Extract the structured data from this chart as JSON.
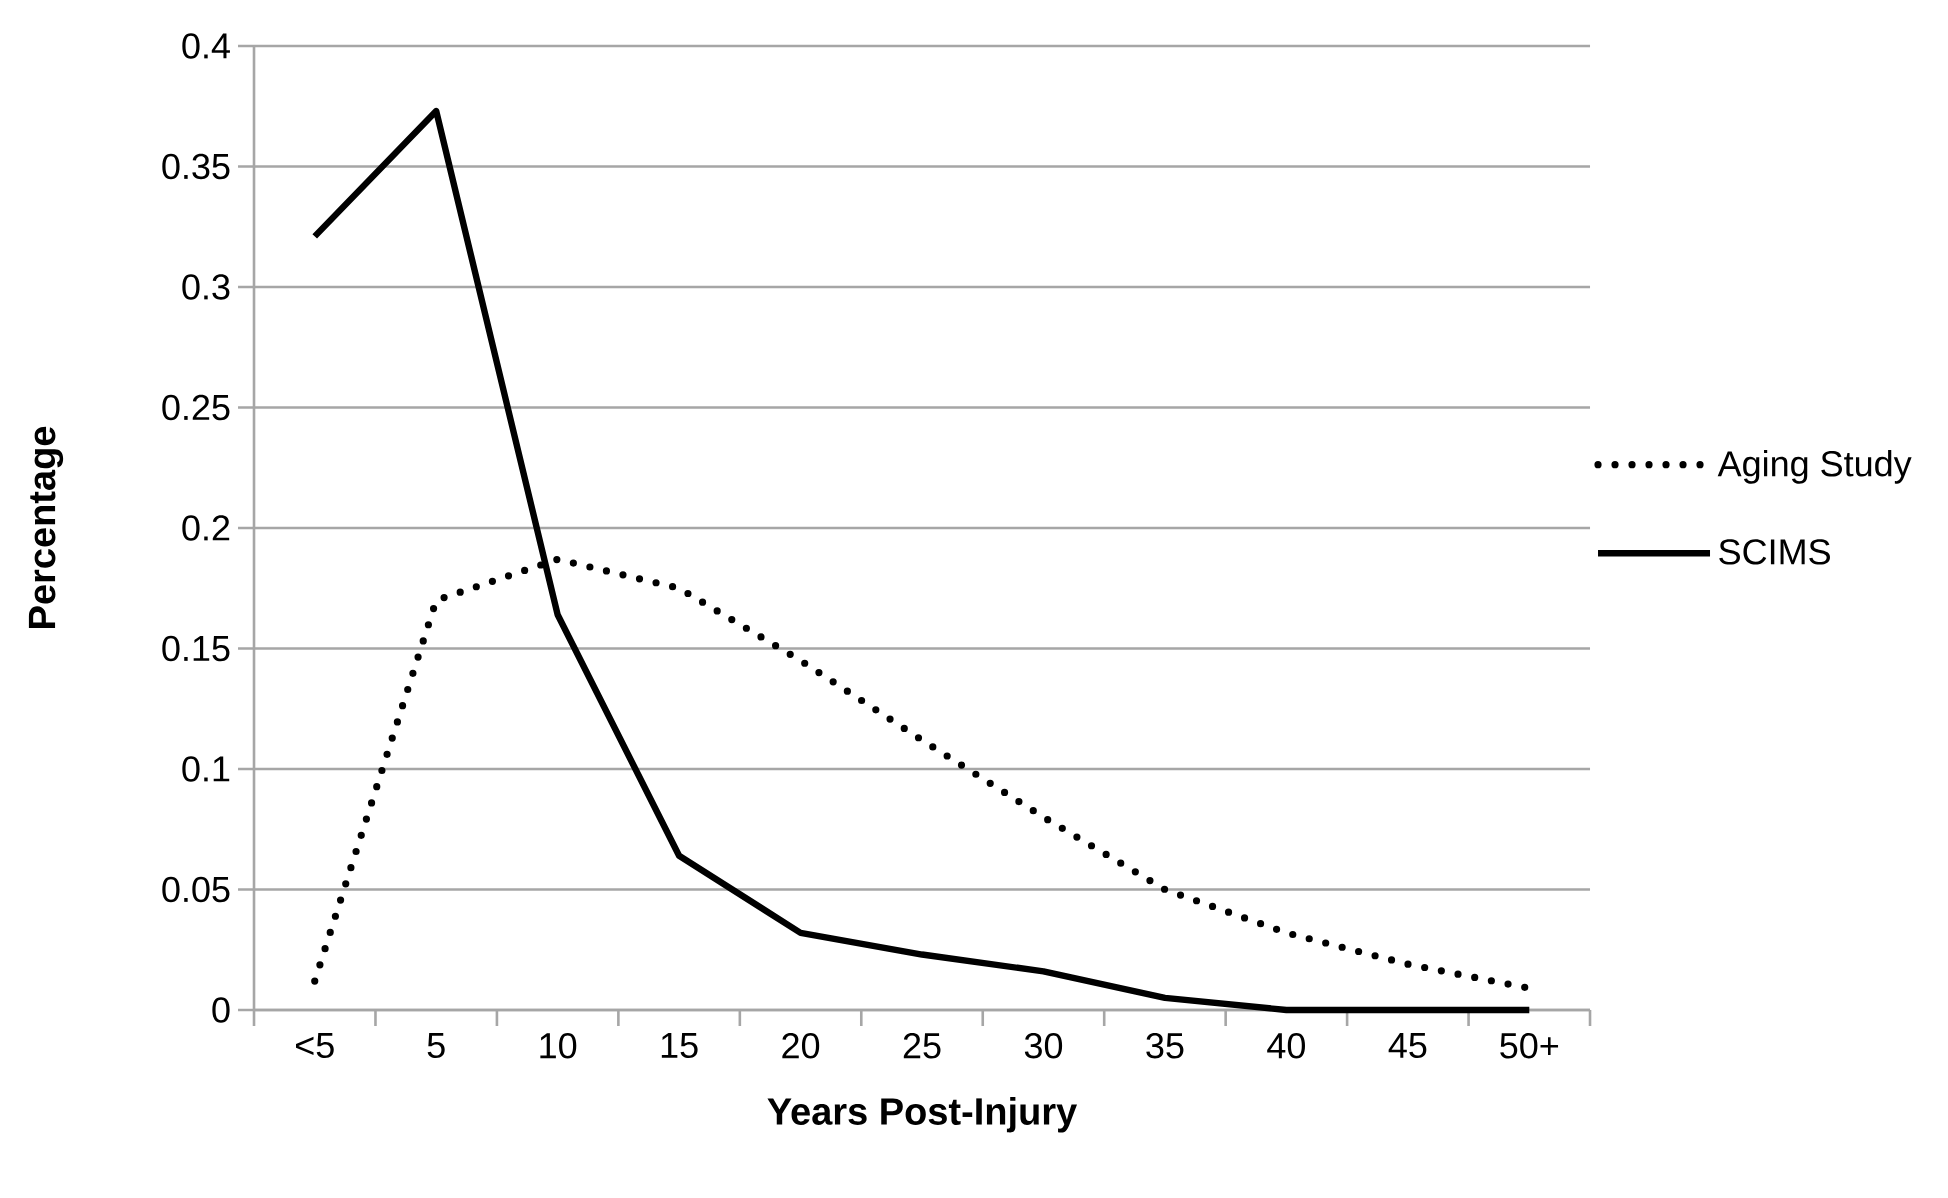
{
  "chart_data": {
    "type": "line",
    "xlabel": "Years Post-Injury",
    "ylabel": "Percentage",
    "categories": [
      "<5",
      "5",
      "10",
      "15",
      "20",
      "25",
      "30",
      "35",
      "40",
      "45",
      "50+"
    ],
    "series": [
      {
        "name": "Aging Study",
        "color": "#000000",
        "line_style": "dotted",
        "values": [
          0.012,
          0.17,
          0.187,
          0.175,
          0.145,
          0.112,
          0.08,
          0.05,
          0.032,
          0.019,
          0.009
        ]
      },
      {
        "name": "SCIMS",
        "color": "#000000",
        "line_style": "solid",
        "values": [
          0.321,
          0.373,
          0.164,
          0.064,
          0.032,
          0.023,
          0.016,
          0.005,
          0,
          0,
          0
        ]
      }
    ],
    "ylim": [
      0,
      0.4
    ],
    "yticks": [
      0,
      0.05,
      0.1,
      0.15,
      0.2,
      0.25,
      0.3,
      0.35,
      0.4
    ],
    "grid": "y",
    "legend": "right",
    "marker": "none"
  }
}
